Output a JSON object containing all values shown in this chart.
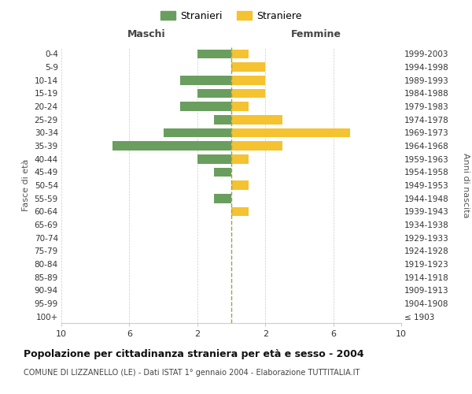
{
  "age_groups": [
    "100+",
    "95-99",
    "90-94",
    "85-89",
    "80-84",
    "75-79",
    "70-74",
    "65-69",
    "60-64",
    "55-59",
    "50-54",
    "45-49",
    "40-44",
    "35-39",
    "30-34",
    "25-29",
    "20-24",
    "15-19",
    "10-14",
    "5-9",
    "0-4"
  ],
  "birth_years": [
    "≤ 1903",
    "1904-1908",
    "1909-1913",
    "1914-1918",
    "1919-1923",
    "1924-1928",
    "1929-1933",
    "1934-1938",
    "1939-1943",
    "1944-1948",
    "1949-1953",
    "1954-1958",
    "1959-1963",
    "1964-1968",
    "1969-1973",
    "1974-1978",
    "1979-1983",
    "1984-1988",
    "1989-1993",
    "1994-1998",
    "1999-2003"
  ],
  "males": [
    0,
    0,
    0,
    0,
    0,
    0,
    0,
    0,
    0,
    1,
    0,
    1,
    2,
    7,
    4,
    1,
    3,
    2,
    3,
    0,
    2
  ],
  "females": [
    0,
    0,
    0,
    0,
    0,
    0,
    0,
    0,
    1,
    0,
    1,
    0,
    1,
    3,
    7,
    3,
    1,
    2,
    2,
    2,
    1
  ],
  "male_color": "#6a9e5e",
  "female_color": "#f5c230",
  "center_line_color": "#a0a050",
  "title": "Popolazione per cittadinanza straniera per età e sesso - 2004",
  "subtitle": "COMUNE DI LIZZANELLO (LE) - Dati ISTAT 1° gennaio 2004 - Elaborazione TUTTITALIA.IT",
  "ylabel_left": "Fasce di età",
  "ylabel_right": "Anni di nascita",
  "xlabel_left": "Maschi",
  "xlabel_right": "Femmine",
  "legend_male": "Stranieri",
  "legend_female": "Straniere",
  "xlim": 10,
  "bg_color": "#ffffff",
  "grid_color": "#cccccc"
}
